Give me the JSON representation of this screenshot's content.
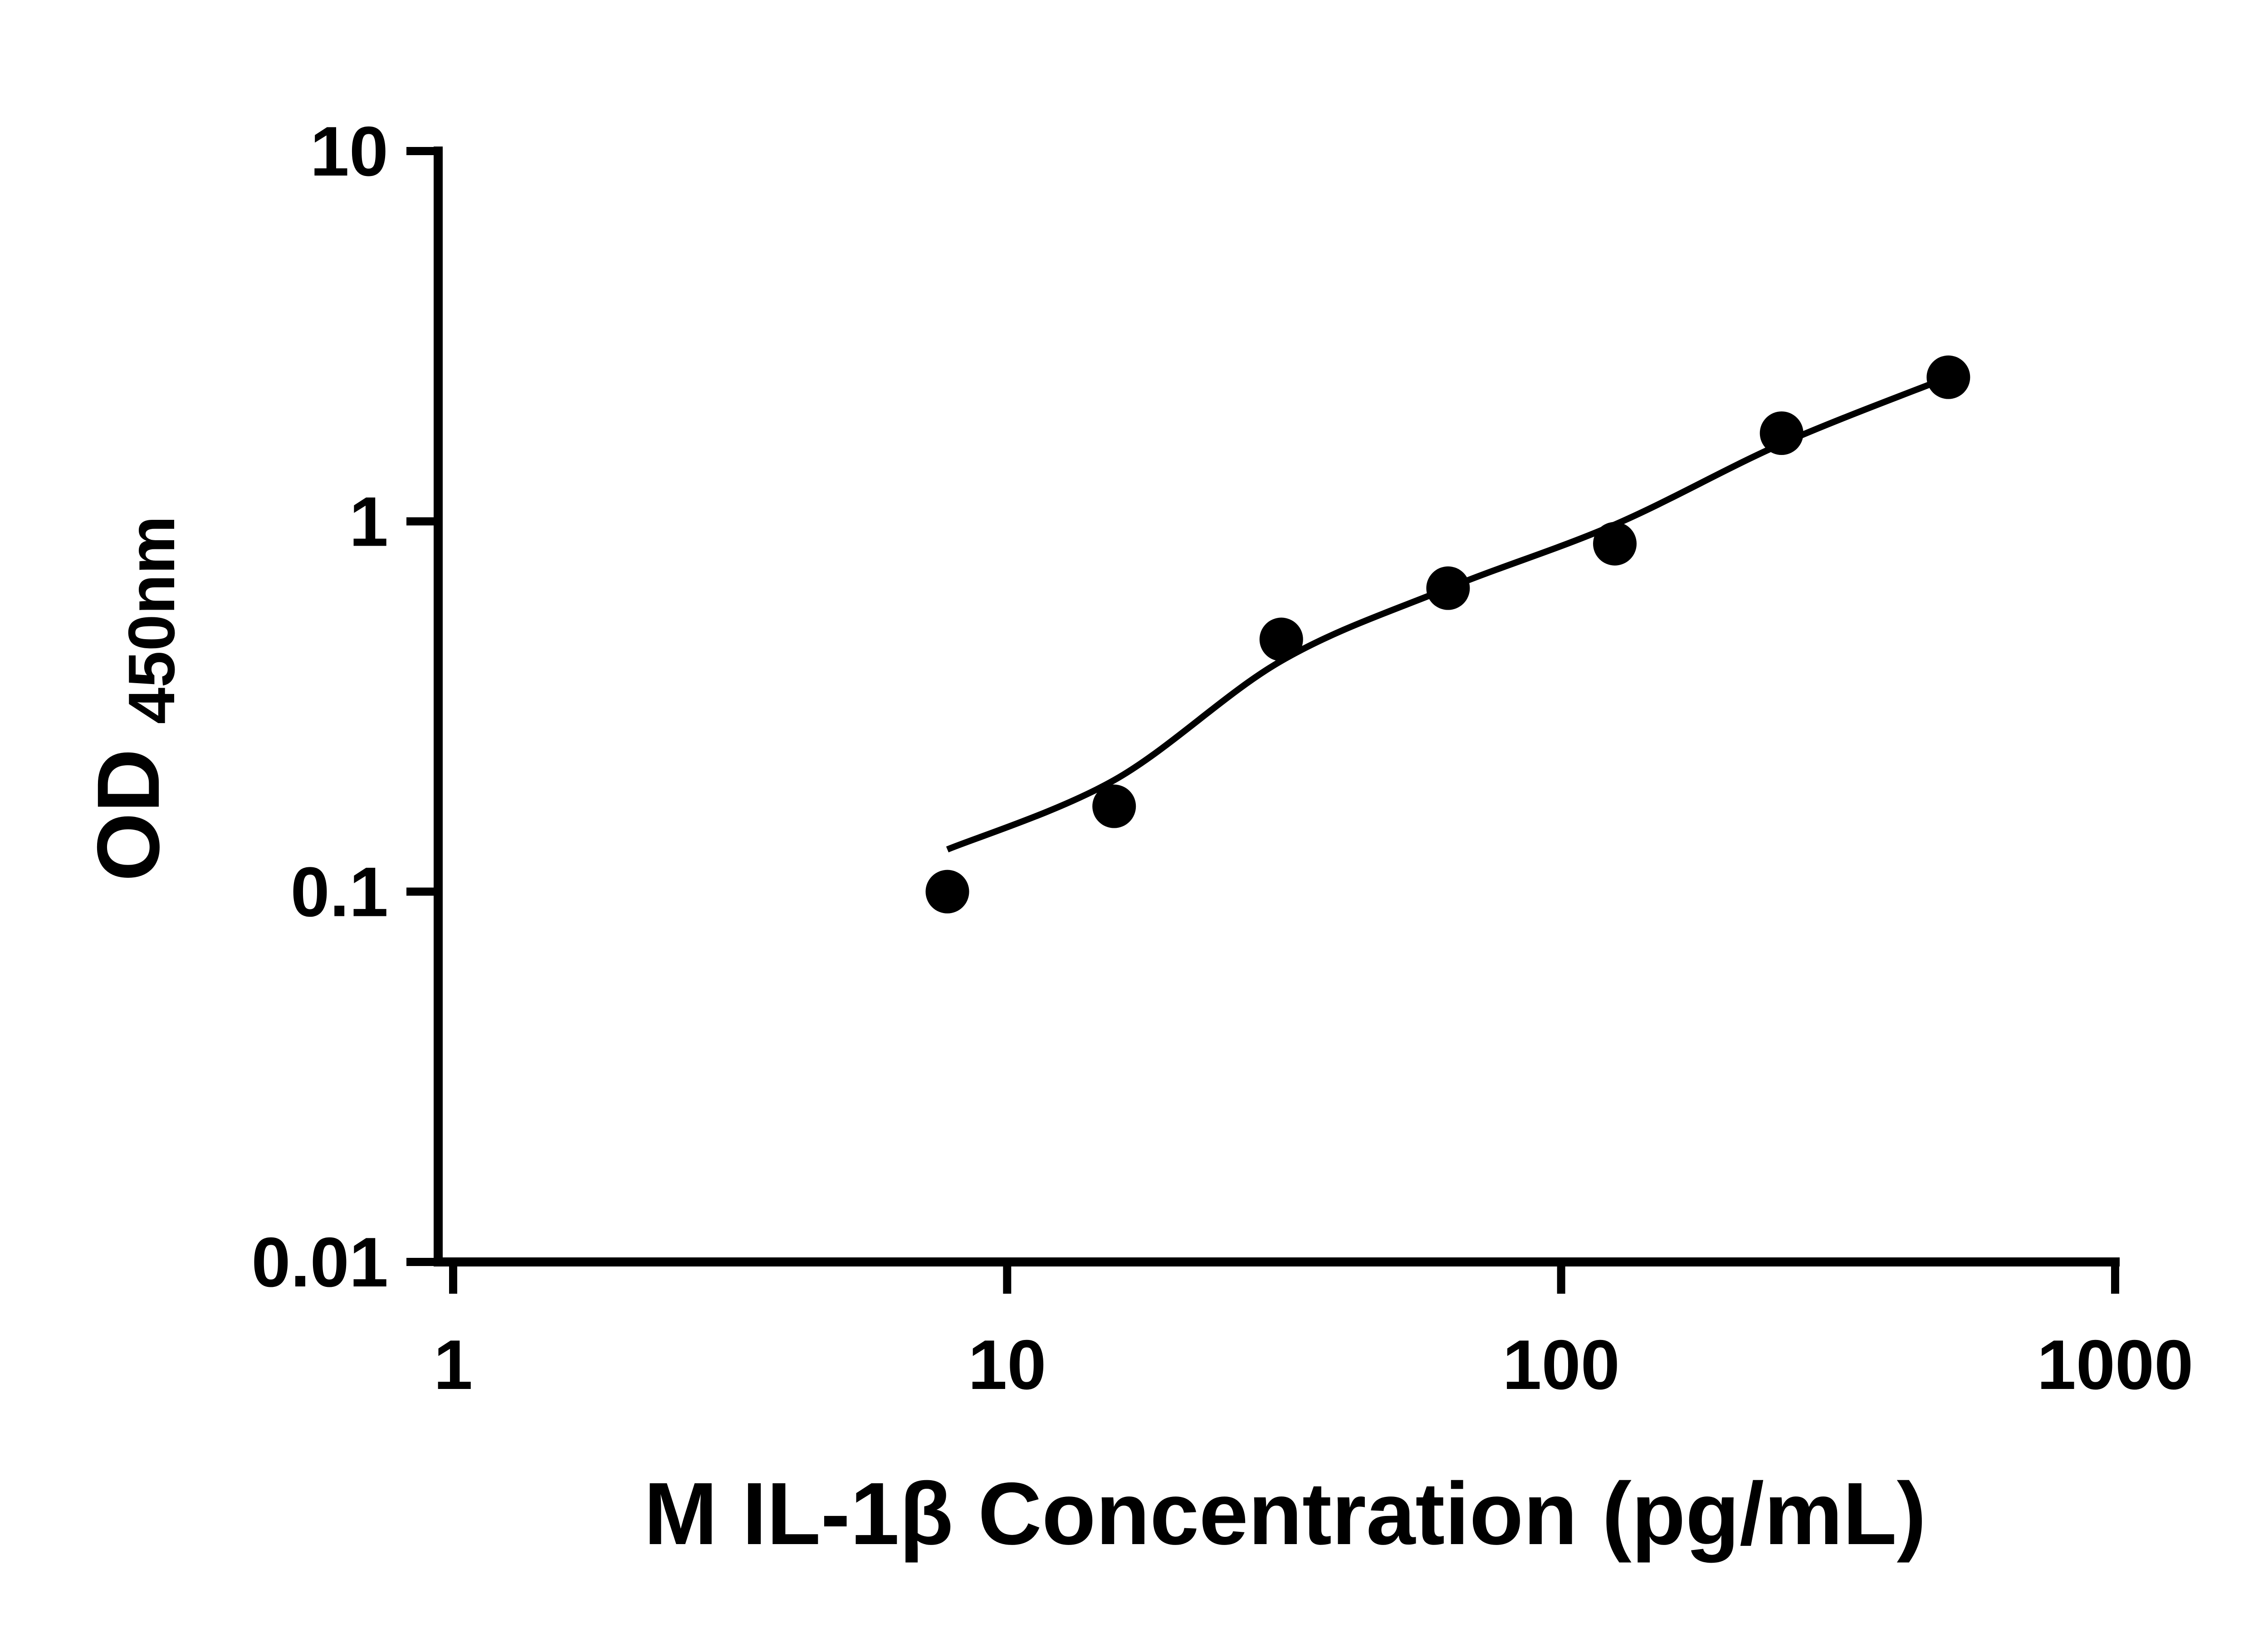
{
  "figure": {
    "background": "#ffffff"
  },
  "chart_data": {
    "type": "scatter",
    "title": "",
    "xlabel": "M IL-1β Concentration (pg/mL)",
    "ylabel": "OD450nm",
    "ylabel_main": "OD",
    "ylabel_sub": "450nm",
    "x_scale": "log",
    "y_scale": "log",
    "xlim": [
      1,
      1000
    ],
    "ylim": [
      0.01,
      10
    ],
    "x_ticks": [
      1,
      10,
      100,
      1000
    ],
    "x_tick_labels": [
      "1",
      "10",
      "100",
      "1000"
    ],
    "y_ticks": [
      10,
      1,
      0.1,
      0.01
    ],
    "y_tick_labels": [
      "10",
      "1",
      "0.1",
      "0.01"
    ],
    "grid": false,
    "legend_position": "none",
    "axis_color": "#000000",
    "marker_color": "#000000",
    "line_color": "#000000",
    "points": [
      {
        "x": 7.8,
        "y": 0.1
      },
      {
        "x": 15.6,
        "y": 0.17
      },
      {
        "x": 31.25,
        "y": 0.48
      },
      {
        "x": 62.5,
        "y": 0.66
      },
      {
        "x": 125,
        "y": 0.87
      },
      {
        "x": 250,
        "y": 1.73
      },
      {
        "x": 500,
        "y": 2.45
      }
    ],
    "fit_curve": [
      {
        "x": 7.8,
        "y": 0.13
      },
      {
        "x": 15.6,
        "y": 0.2
      },
      {
        "x": 31.25,
        "y": 0.42
      },
      {
        "x": 62.5,
        "y": 0.66
      },
      {
        "x": 125,
        "y": 0.98
      },
      {
        "x": 250,
        "y": 1.62
      },
      {
        "x": 500,
        "y": 2.45
      }
    ]
  }
}
